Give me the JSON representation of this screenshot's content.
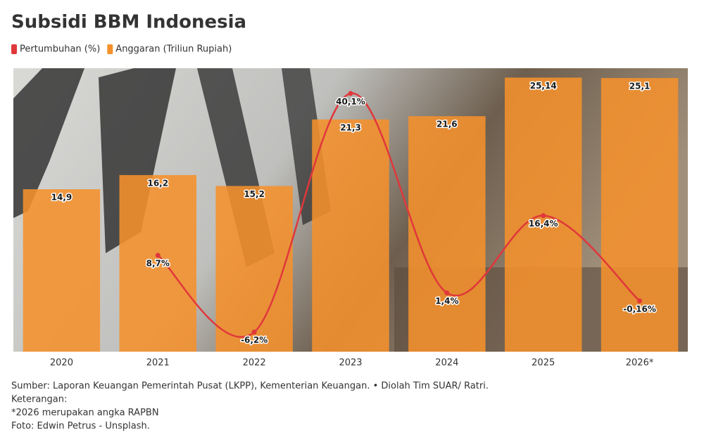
{
  "chart_data": {
    "type": "bar-line",
    "title": "Subsidi BBM Indonesia",
    "categories": [
      "2020",
      "2021",
      "2022",
      "2023",
      "2024",
      "2025",
      "2026*"
    ],
    "series": [
      {
        "name": "Pertumbuhan (%)",
        "type": "line",
        "axis": "y2",
        "color": "#e0373b",
        "values": [
          null,
          8.7,
          -6.2,
          40.1,
          1.4,
          16.4,
          -0.16
        ],
        "value_labels": [
          null,
          "8,7%",
          "-6,2%",
          "40,1%",
          "1,4%",
          "16,4%",
          "-0,16%"
        ]
      },
      {
        "name": "Anggaran (Triliun Rupiah)",
        "type": "bar",
        "color": "#f5912c",
        "values": [
          14.9,
          16.2,
          15.2,
          21.3,
          21.6,
          25.14,
          25.1
        ],
        "value_labels": [
          "14,9",
          "16,2",
          "15,2",
          "21,3",
          "21,6",
          "25,14",
          "25,1"
        ]
      }
    ],
    "ylim": [
      0,
      26
    ],
    "y2lim": [
      -10,
      45
    ],
    "footnotes": [
      "Sumber: Laporan Keuangan Pemerintah Pusat (LKPP), Kementerian Keuangan. • Diolah Tim SUAR/ Ratri.",
      "Keterangan:",
      "*2026 merupakan angka RAPBN",
      "Foto: Edwin Petrus - Unsplash."
    ]
  }
}
